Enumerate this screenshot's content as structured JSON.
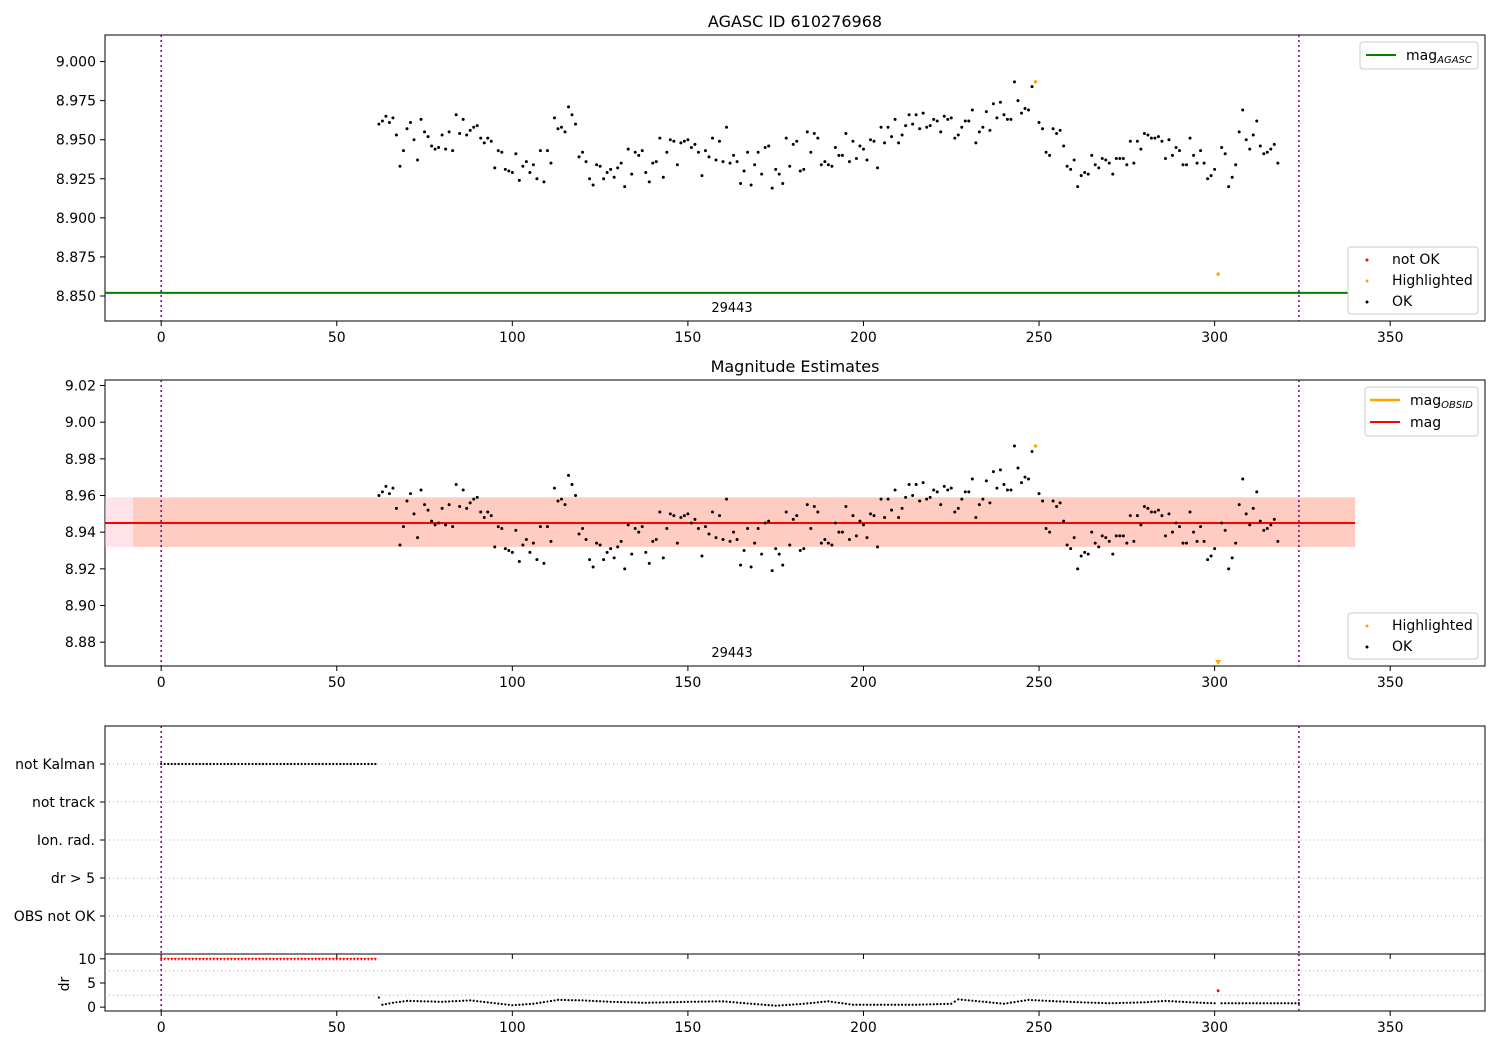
{
  "chart_data": [
    {
      "type": "scatter",
      "title": "AGASC ID 610276968",
      "xlim": [
        -16,
        377
      ],
      "ylim": [
        8.834,
        9.017
      ],
      "xticks": [
        0,
        50,
        100,
        150,
        200,
        250,
        300,
        350
      ],
      "yticks": [
        8.85,
        8.875,
        8.9,
        8.925,
        8.95,
        8.975,
        9.0
      ],
      "ytick_labels": [
        "8.850",
        "8.875",
        "8.900",
        "8.925",
        "8.950",
        "8.975",
        "9.000"
      ],
      "vlines_x": [
        0,
        324
      ],
      "obsid_label": "29443",
      "hline": {
        "name": "mag_AGASC",
        "legend_main": "mag",
        "legend_sub": "AGASC",
        "y": 8.852,
        "x_range": [
          -16,
          340
        ],
        "color": "#008000"
      },
      "legend_line_placement": "top-right",
      "legend_points_placement": "bottom-right",
      "point_legend": [
        {
          "label": "not OK",
          "color": "#ff0000"
        },
        {
          "label": "Highlighted",
          "color": "#ffa500"
        },
        {
          "label": "OK",
          "color": "#000000"
        }
      ],
      "highlighted": [
        {
          "x": 249,
          "y": 8.987
        },
        {
          "x": 301,
          "y": 8.864
        }
      ]
    },
    {
      "type": "scatter",
      "title": "Magnitude Estimates",
      "xlim": [
        -16,
        377
      ],
      "ylim": [
        8.867,
        9.023
      ],
      "xticks": [
        0,
        50,
        100,
        150,
        200,
        250,
        300,
        350
      ],
      "yticks": [
        8.88,
        8.9,
        8.92,
        8.94,
        8.96,
        8.98,
        9.0,
        9.02
      ],
      "ytick_labels": [
        "8.88",
        "8.90",
        "8.92",
        "8.94",
        "8.96",
        "8.98",
        "9.00",
        "9.02"
      ],
      "vlines_x": [
        0,
        324
      ],
      "obsid_label": "29443",
      "mag": {
        "name": "mag",
        "y": 8.945,
        "band": [
          8.932,
          8.959
        ],
        "x_range": [
          -16,
          340
        ],
        "color": "#ff0000"
      },
      "mag_obsid": {
        "name": "mag_OBSID",
        "legend_main": "mag",
        "legend_sub": "OBSID",
        "y": 8.945,
        "band": [
          8.932,
          8.959
        ],
        "x_range": [
          -8,
          340
        ],
        "color": "#ffa500"
      },
      "legend_line_placement": "top-right",
      "legend_points_placement": "bottom-right",
      "point_legend": [
        {
          "label": "Highlighted",
          "color": "#ffa500"
        },
        {
          "label": "OK",
          "color": "#000000"
        }
      ],
      "highlighted": [
        {
          "x": 249,
          "y": 8.987
        }
      ],
      "offscale_marker": {
        "x": 301,
        "color": "#ffa500"
      }
    },
    {
      "type": "scatter",
      "title": "",
      "xlim": [
        -16,
        377
      ],
      "flag_rows": [
        "not Kalman",
        "not track",
        "Ion. rad.",
        "dr > 5",
        "OBS not OK"
      ],
      "flag_ranges": [
        {
          "row": "not Kalman",
          "x_from": 0,
          "x_to": 61
        }
      ],
      "vlines_x": [
        0,
        324
      ]
    },
    {
      "type": "scatter",
      "title": "",
      "ylabel": "dr",
      "xlim": [
        -16,
        377
      ],
      "ylim": [
        -0.8,
        11
      ],
      "xticks": [
        0,
        50,
        100,
        150,
        200,
        250,
        300,
        350
      ],
      "yticks": [
        0,
        5,
        10
      ],
      "ytick_labels": [
        "0",
        "5",
        "10"
      ],
      "vlines_x": [
        0,
        324
      ],
      "clipped_value": 10,
      "clipped_range": [
        0,
        61
      ],
      "dr_anchors": [
        [
          62,
          2.0
        ],
        [
          63,
          0.5
        ],
        [
          66,
          0.9
        ],
        [
          70,
          1.3
        ],
        [
          80,
          1.1
        ],
        [
          88,
          1.4
        ],
        [
          94,
          0.9
        ],
        [
          100,
          0.4
        ],
        [
          106,
          0.7
        ],
        [
          113,
          1.5
        ],
        [
          120,
          1.4
        ],
        [
          128,
          1.1
        ],
        [
          138,
          0.9
        ],
        [
          150,
          1.1
        ],
        [
          160,
          1.2
        ],
        [
          168,
          0.7
        ],
        [
          175,
          0.3
        ],
        [
          183,
          0.7
        ],
        [
          190,
          1.2
        ],
        [
          197,
          0.5
        ],
        [
          205,
          0.5
        ],
        [
          215,
          0.5
        ],
        [
          225,
          0.7
        ],
        [
          227,
          1.6
        ],
        [
          233,
          1.2
        ],
        [
          240,
          0.7
        ],
        [
          247,
          1.5
        ],
        [
          255,
          1.2
        ],
        [
          262,
          1.0
        ],
        [
          270,
          0.8
        ],
        [
          280,
          1.0
        ],
        [
          286,
          1.3
        ],
        [
          293,
          1.0
        ],
        [
          300,
          0.8
        ],
        [
          306,
          0.8
        ],
        [
          315,
          0.8
        ],
        [
          324,
          0.8
        ]
      ],
      "not_ok": [
        {
          "x": 301,
          "y": 3.4
        }
      ]
    }
  ],
  "series": {
    "x_start": 62,
    "x_end": 324,
    "mag_values": [
      8.96,
      8.962,
      8.965,
      8.961,
      8.964,
      8.953,
      8.933,
      8.943,
      8.957,
      8.961,
      8.95,
      8.937,
      8.963,
      8.955,
      8.952,
      8.946,
      8.944,
      8.945,
      8.953,
      8.944,
      8.955,
      8.943,
      8.966,
      8.954,
      8.963,
      8.953,
      8.956,
      8.958,
      8.959,
      8.951,
      8.948,
      8.951,
      8.949,
      8.932,
      8.943,
      8.942,
      8.931,
      8.93,
      8.929,
      8.941,
      8.924,
      8.933,
      8.936,
      8.929,
      8.934,
      8.925,
      8.943,
      8.923,
      8.943,
      8.935,
      8.964,
      8.957,
      8.958,
      8.955,
      8.971,
      8.966,
      8.96,
      8.939,
      8.942,
      8.936,
      8.925,
      8.921,
      8.934,
      8.933,
      8.925,
      8.929,
      8.931,
      8.926,
      8.932,
      8.935,
      8.92,
      8.944,
      8.928,
      8.942,
      8.94,
      8.943,
      8.929,
      8.923,
      8.935,
      8.936,
      8.951,
      8.926,
      8.942,
      8.95,
      8.949,
      8.934,
      8.948,
      8.949,
      8.95,
      8.945,
      8.947,
      8.942,
      8.927,
      8.943,
      8.939,
      8.951,
      8.937,
      8.949,
      8.936,
      8.958,
      8.935,
      8.94,
      8.936,
      8.922,
      8.93,
      8.942,
      8.921,
      8.934,
      8.942,
      8.928,
      8.945,
      8.946,
      8.919,
      8.931,
      8.928,
      8.922,
      8.951,
      8.933,
      8.947,
      8.949,
      8.93,
      8.931,
      8.955,
      8.942,
      8.954,
      8.951,
      8.934,
      8.936,
      8.934,
      8.933,
      8.945,
      8.94,
      8.94,
      8.954,
      8.936,
      8.949,
      8.938,
      8.946,
      8.944,
      8.937,
      8.95,
      8.949,
      8.932,
      8.958,
      8.948,
      8.958,
      8.952,
      8.963,
      8.948,
      8.953,
      8.959,
      8.966,
      8.96,
      8.966,
      8.957,
      8.967,
      8.958,
      8.959,
      8.963,
      8.962,
      8.955,
      8.965,
      8.963,
      8.964,
      8.951,
      8.953,
      8.958,
      8.962,
      8.962,
      8.969,
      8.948,
      8.955,
      8.958,
      8.968,
      8.956,
      8.973,
      8.964,
      8.974,
      8.966,
      8.963,
      8.963,
      8.987,
      8.975,
      8.967,
      8.97,
      8.969,
      8.984,
      8.947,
      8.961,
      8.957,
      8.942,
      8.94,
      8.957,
      8.954,
      8.956,
      8.946,
      8.933,
      8.931,
      8.937,
      8.92,
      8.927,
      8.929,
      8.928,
      8.94,
      8.934,
      8.932,
      8.938,
      8.937,
      8.935,
      8.928,
      8.938,
      8.938,
      8.938,
      8.934,
      8.949,
      8.935,
      8.949,
      8.944,
      8.954,
      8.953,
      8.951,
      8.951,
      8.952,
      8.949,
      8.938,
      8.95,
      8.94,
      8.945,
      8.943,
      8.934,
      8.934,
      8.951,
      8.94,
      8.935,
      8.943,
      8.935,
      8.925,
      8.927,
      8.931,
      8.926,
      8.945,
      8.941,
      8.92,
      8.926,
      8.934,
      8.955,
      8.969,
      8.95,
      8.944,
      8.953,
      8.962,
      8.946,
      8.941,
      8.942,
      8.944,
      8.947,
      8.935
    ]
  }
}
